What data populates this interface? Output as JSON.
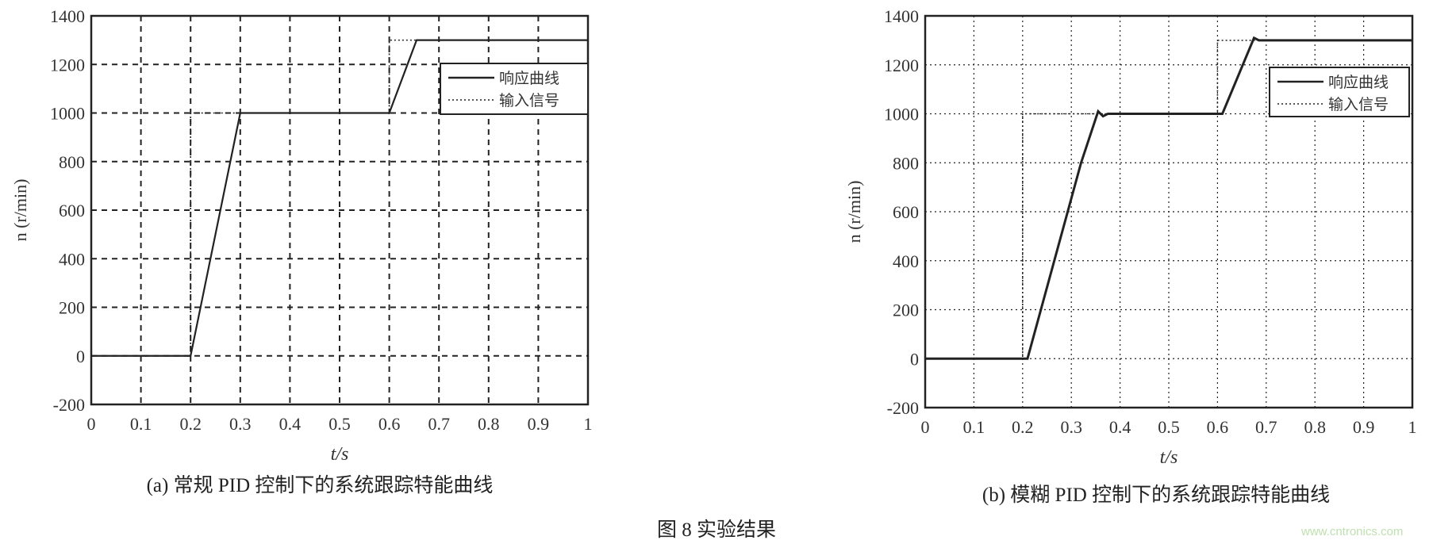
{
  "figure_caption": "图 8  实验结果",
  "watermark": "www.cntronics.com",
  "colors": {
    "line": "#222222",
    "grid": "#222222",
    "background": "#ffffff"
  },
  "chart_data": [
    {
      "type": "line",
      "caption": "(a) 常规 PID 控制下的系统跟踪特能曲线",
      "xlabel": "t/s",
      "ylabel": "n (r/min)",
      "xlim": [
        0,
        1
      ],
      "ylim": [
        -200,
        1400
      ],
      "xticks": [
        "0",
        "0.1",
        "0.2",
        "0.3",
        "0.4",
        "0.5",
        "0.6",
        "0.7",
        "0.8",
        "0.9",
        "1"
      ],
      "yticks": [
        "-200",
        "0",
        "200",
        "400",
        "600",
        "800",
        "1000",
        "1200",
        "1400"
      ],
      "grid": true,
      "grid_style": "dashed",
      "legend": "top-right",
      "series": [
        {
          "name": "响应曲线",
          "style": "solid",
          "x": [
            0,
            0.2,
            0.3,
            0.6,
            0.655,
            1
          ],
          "y": [
            0,
            0,
            1000,
            1000,
            1300,
            1300
          ]
        },
        {
          "name": "输入信号",
          "style": "dotted",
          "x": [
            0,
            0.2,
            0.2,
            0.6,
            0.6,
            1
          ],
          "y": [
            0,
            0,
            1000,
            1000,
            1300,
            1300
          ]
        }
      ]
    },
    {
      "type": "line",
      "caption": "(b) 模糊 PID 控制下的系统跟踪特能曲线",
      "xlabel": "t/s",
      "ylabel": "n (r/min)",
      "xlim": [
        0,
        1
      ],
      "ylim": [
        -200,
        1400
      ],
      "xticks": [
        "0",
        "0.1",
        "0.2",
        "0.3",
        "0.4",
        "0.5",
        "0.6",
        "0.7",
        "0.8",
        "0.9",
        "1"
      ],
      "yticks": [
        "-200",
        "0",
        "200",
        "400",
        "600",
        "800",
        "1000",
        "1200",
        "1400"
      ],
      "grid": true,
      "grid_style": "dotted",
      "legend": "top-right",
      "series": [
        {
          "name": "响应曲线",
          "style": "solid",
          "x": [
            0,
            0.21,
            0.32,
            0.355,
            0.365,
            0.375,
            0.61,
            0.675,
            0.685,
            1
          ],
          "y": [
            0,
            0,
            800,
            1010,
            990,
            1000,
            1000,
            1310,
            1300,
            1300
          ]
        },
        {
          "name": "输入信号",
          "style": "dotted",
          "x": [
            0,
            0.2,
            0.2,
            0.6,
            0.6,
            1
          ],
          "y": [
            0,
            0,
            1000,
            1000,
            1300,
            1300
          ]
        }
      ]
    }
  ]
}
